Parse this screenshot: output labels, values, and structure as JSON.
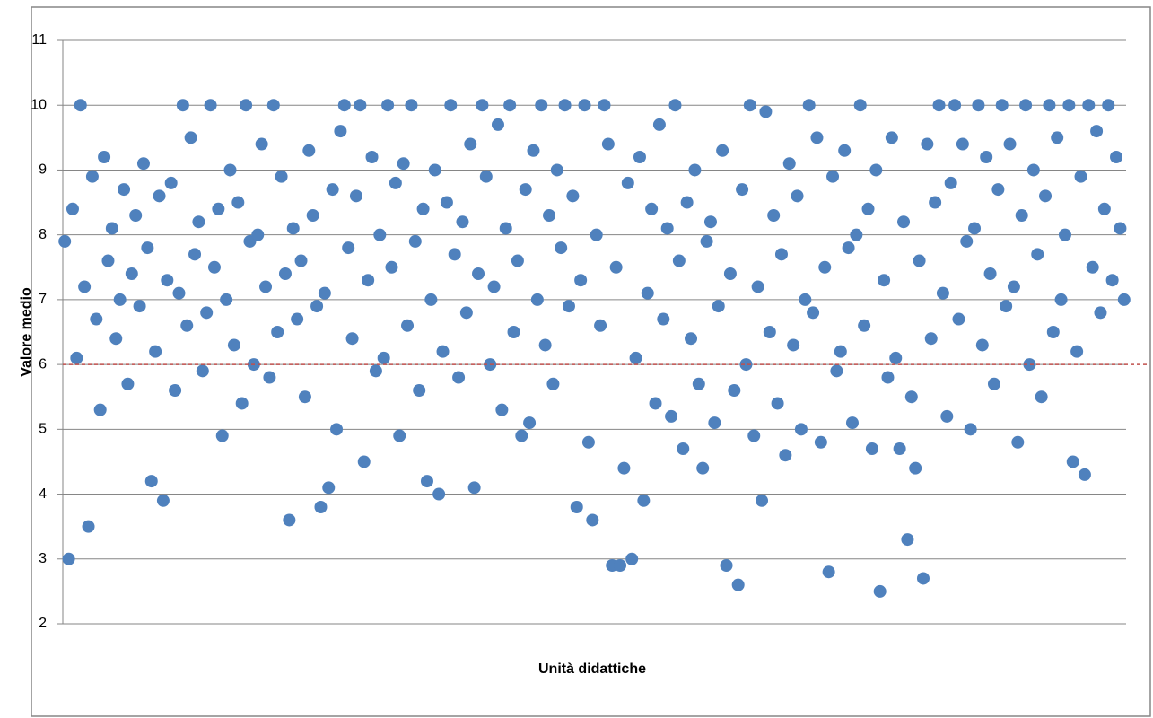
{
  "chart_data": {
    "type": "scatter",
    "xlabel": "Unità didattiche",
    "ylabel": "Valore medio",
    "color": "#4f81bd",
    "ylim": [
      2,
      11
    ],
    "yticks": [
      2,
      3,
      4,
      5,
      6,
      7,
      8,
      9,
      10,
      11
    ],
    "grid": true,
    "reference_line": {
      "value": 6,
      "color": "#c0504d",
      "style": "dashed"
    },
    "values": [
      7.9,
      3.0,
      8.4,
      6.1,
      10,
      7.2,
      3.5,
      8.9,
      6.7,
      5.3,
      9.2,
      7.6,
      8.1,
      6.4,
      7.0,
      8.7,
      5.7,
      7.4,
      8.3,
      6.9,
      9.1,
      7.8,
      4.2,
      6.2,
      8.6,
      3.9,
      7.3,
      8.8,
      5.6,
      7.1,
      10,
      6.6,
      9.5,
      7.7,
      8.2,
      5.9,
      6.8,
      10,
      7.5,
      8.4,
      4.9,
      7.0,
      9.0,
      6.3,
      8.5,
      5.4,
      10,
      7.9,
      6.0,
      8.0,
      9.4,
      7.2,
      5.8,
      10,
      6.5,
      8.9,
      7.4,
      3.6,
      8.1,
      6.7,
      7.6,
      5.5,
      9.3,
      8.3,
      6.9,
      3.8,
      7.1,
      4.1,
      8.7,
      5.0,
      9.6,
      10,
      7.8,
      6.4,
      8.6,
      10,
      4.5,
      7.3,
      9.2,
      5.9,
      8.0,
      6.1,
      10,
      7.5,
      8.8,
      4.9,
      9.1,
      6.6,
      10,
      7.9,
      5.6,
      8.4,
      4.2,
      7.0,
      9.0,
      4.0,
      6.2,
      8.5,
      10,
      7.7,
      5.8,
      8.2,
      6.8,
      9.4,
      4.1,
      7.4,
      10,
      8.9,
      6.0,
      7.2,
      9.7,
      5.3,
      8.1,
      10,
      6.5,
      7.6,
      4.9,
      8.7,
      5.1,
      9.3,
      7.0,
      10,
      6.3,
      8.3,
      5.7,
      9.0,
      7.8,
      10,
      6.9,
      8.6,
      3.8,
      7.3,
      10,
      4.8,
      3.6,
      8.0,
      6.6,
      10,
      9.4,
      2.9,
      7.5,
      2.9,
      4.4,
      8.8,
      3.0,
      6.1,
      9.2,
      3.9,
      7.1,
      8.4,
      5.4,
      9.7,
      6.7,
      8.1,
      5.2,
      10,
      7.6,
      4.7,
      8.5,
      6.4,
      9.0,
      5.7,
      4.4,
      7.9,
      8.2,
      5.1,
      6.9,
      9.3,
      2.9,
      7.4,
      5.6,
      2.6,
      8.7,
      6.0,
      10,
      4.9,
      7.2,
      3.9,
      9.9,
      6.5,
      8.3,
      5.4,
      7.7,
      4.6,
      9.1,
      6.3,
      8.6,
      5.0,
      7.0,
      10,
      6.8,
      9.5,
      4.8,
      7.5,
      2.8,
      8.9,
      5.9,
      6.2,
      9.3,
      7.8,
      5.1,
      8.0,
      10,
      6.6,
      8.4,
      4.7,
      9.0,
      2.5,
      7.3,
      5.8,
      9.5,
      6.1,
      4.7,
      8.2,
      3.3,
      5.5,
      4.4,
      7.6,
      2.7,
      9.4,
      6.4,
      8.5,
      10,
      7.1,
      5.2,
      8.8,
      10,
      6.7,
      9.4,
      7.9,
      5.0,
      8.1,
      10,
      6.3,
      9.2,
      7.4,
      5.7,
      8.7,
      10,
      6.9,
      9.4,
      7.2,
      4.8,
      8.3,
      10,
      6.0,
      9.0,
      7.7,
      5.5,
      8.6,
      10,
      6.5,
      9.5,
      7.0,
      8.0,
      10,
      4.5,
      6.2,
      8.9,
      4.3,
      10,
      7.5,
      9.6,
      6.8,
      8.4,
      10,
      7.3,
      9.2,
      8.1,
      7.0
    ]
  }
}
